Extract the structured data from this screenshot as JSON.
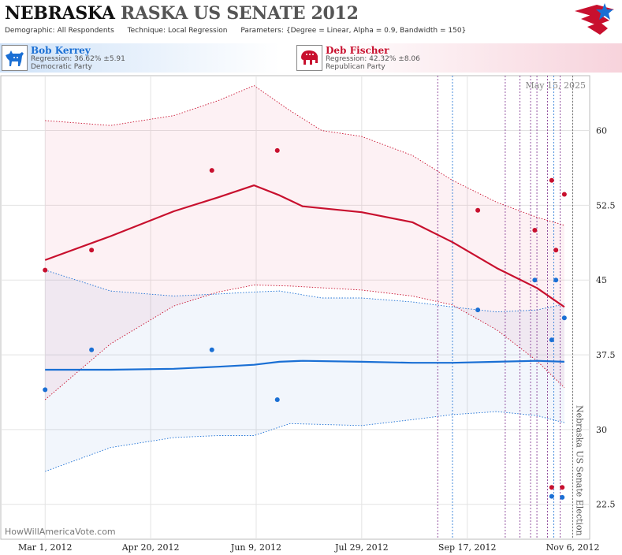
{
  "header": {
    "title_state": "NEBRASKA",
    "title_race": "RASKA US SENATE 2012",
    "params": [
      {
        "k": "Demographic:",
        "v": "All Respondents"
      },
      {
        "k": "Technique:",
        "v": "Local Regression"
      },
      {
        "k": "Parameters:",
        "v": "{Degree = Linear, Alpha = 0.9, Bandwidth = 150}"
      }
    ]
  },
  "candidates": {
    "dem": {
      "name": "Bob Kerrey",
      "regression": "Regression: 36.62% ±5.91",
      "party": "Democratic Party",
      "color": "#1a6fd4",
      "icon": "donkey-icon"
    },
    "rep": {
      "name": "Deb Fischer",
      "regression": "Regression: 42.32% ±8.06",
      "party": "Republican Party",
      "color": "#c8102e",
      "icon": "elephant-icon"
    }
  },
  "chart_data": {
    "type": "scatter",
    "date_label": "May 15, 2025",
    "watermark": "HowWillAmericaVote.com",
    "election_label": "Nebraska US Senate Election",
    "x_ticks": [
      "2012-03-01",
      "2012-04-20",
      "2012-06-09",
      "2012-07-29",
      "2012-09-17",
      "2012-11-06"
    ],
    "x_tick_labels": [
      "Mar 1, 2012",
      "Apr 20, 2012",
      "Jun 9, 2012",
      "Jul 29, 2012",
      "Sep 17, 2012",
      "Nov 6, 2012"
    ],
    "xlim": [
      "2012-02-09",
      "2012-11-14"
    ],
    "y_ticks": [
      22.5,
      30,
      37.5,
      45,
      52.5,
      60
    ],
    "y_tick_labels": [
      "22.5",
      "30",
      "37.5",
      "45",
      "52.5",
      "60"
    ],
    "ylim": [
      19,
      65.5
    ],
    "election_date": "2012-11-06",
    "event_lines_blue": [
      "2012-09-10",
      "2012-10-28"
    ],
    "event_lines_purple": [
      "2012-09-03",
      "2012-10-05",
      "2012-10-12",
      "2012-10-17",
      "2012-10-20",
      "2012-10-25",
      "2012-10-31"
    ],
    "series": [
      {
        "name": "Deb Fischer",
        "color": "#c8102e",
        "points": [
          [
            "2012-03-01",
            46
          ],
          [
            "2012-03-23",
            48
          ],
          [
            "2012-05-19",
            56
          ],
          [
            "2012-06-19",
            58
          ],
          [
            "2012-09-22",
            52
          ],
          [
            "2012-10-19",
            50
          ],
          [
            "2012-10-27",
            55
          ],
          [
            "2012-10-29",
            48
          ],
          [
            "2012-11-02",
            53.6
          ],
          [
            "2012-10-27",
            24.2
          ],
          [
            "2012-11-01",
            24.2
          ]
        ],
        "fit": [
          [
            "2012-03-01",
            47.0
          ],
          [
            "2012-04-01",
            49.4
          ],
          [
            "2012-05-01",
            51.9
          ],
          [
            "2012-05-22",
            53.3
          ],
          [
            "2012-06-08",
            54.5
          ],
          [
            "2012-06-20",
            53.5
          ],
          [
            "2012-07-01",
            52.4
          ],
          [
            "2012-07-29",
            51.8
          ],
          [
            "2012-08-22",
            50.8
          ],
          [
            "2012-09-10",
            48.8
          ],
          [
            "2012-10-01",
            46.2
          ],
          [
            "2012-10-20",
            44.2
          ],
          [
            "2012-11-02",
            42.3
          ]
        ],
        "upper": [
          [
            "2012-03-01",
            61.0
          ],
          [
            "2012-04-01",
            60.5
          ],
          [
            "2012-05-01",
            61.5
          ],
          [
            "2012-05-22",
            63.0
          ],
          [
            "2012-06-08",
            64.5
          ],
          [
            "2012-06-25",
            62.0
          ],
          [
            "2012-07-10",
            60.0
          ],
          [
            "2012-07-29",
            59.4
          ],
          [
            "2012-08-22",
            57.5
          ],
          [
            "2012-09-10",
            55.0
          ],
          [
            "2012-10-01",
            52.8
          ],
          [
            "2012-10-20",
            51.3
          ],
          [
            "2012-11-02",
            50.5
          ]
        ],
        "lower": [
          [
            "2012-03-01",
            33.0
          ],
          [
            "2012-04-01",
            38.6
          ],
          [
            "2012-05-01",
            42.4
          ],
          [
            "2012-05-22",
            43.8
          ],
          [
            "2012-06-08",
            44.5
          ],
          [
            "2012-06-25",
            44.4
          ],
          [
            "2012-07-29",
            44.0
          ],
          [
            "2012-08-22",
            43.4
          ],
          [
            "2012-09-10",
            42.5
          ],
          [
            "2012-10-01",
            40.0
          ],
          [
            "2012-10-20",
            36.9
          ],
          [
            "2012-11-02",
            34.2
          ]
        ]
      },
      {
        "name": "Bob Kerrey",
        "color": "#1a6fd4",
        "points": [
          [
            "2012-03-01",
            34
          ],
          [
            "2012-03-23",
            38
          ],
          [
            "2012-05-19",
            38
          ],
          [
            "2012-06-19",
            33
          ],
          [
            "2012-09-22",
            42
          ],
          [
            "2012-10-19",
            45
          ],
          [
            "2012-10-27",
            39
          ],
          [
            "2012-10-29",
            45
          ],
          [
            "2012-11-02",
            41.2
          ],
          [
            "2012-10-27",
            23.3
          ],
          [
            "2012-11-01",
            23.2
          ]
        ],
        "fit": [
          [
            "2012-03-01",
            36.0
          ],
          [
            "2012-04-01",
            36.0
          ],
          [
            "2012-05-01",
            36.1
          ],
          [
            "2012-05-22",
            36.3
          ],
          [
            "2012-06-08",
            36.5
          ],
          [
            "2012-06-20",
            36.8
          ],
          [
            "2012-07-01",
            36.9
          ],
          [
            "2012-07-29",
            36.8
          ],
          [
            "2012-08-22",
            36.7
          ],
          [
            "2012-09-10",
            36.7
          ],
          [
            "2012-10-01",
            36.8
          ],
          [
            "2012-10-20",
            36.9
          ],
          [
            "2012-11-02",
            36.8
          ]
        ],
        "upper": [
          [
            "2012-03-01",
            46.0
          ],
          [
            "2012-04-01",
            43.9
          ],
          [
            "2012-05-01",
            43.4
          ],
          [
            "2012-05-22",
            43.6
          ],
          [
            "2012-06-08",
            43.8
          ],
          [
            "2012-06-20",
            43.9
          ],
          [
            "2012-07-10",
            43.2
          ],
          [
            "2012-07-29",
            43.2
          ],
          [
            "2012-08-22",
            42.8
          ],
          [
            "2012-09-10",
            42.3
          ],
          [
            "2012-10-01",
            41.8
          ],
          [
            "2012-10-20",
            42.0
          ],
          [
            "2012-11-02",
            42.6
          ]
        ],
        "lower": [
          [
            "2012-03-01",
            25.8
          ],
          [
            "2012-04-01",
            28.2
          ],
          [
            "2012-05-01",
            29.2
          ],
          [
            "2012-05-22",
            29.4
          ],
          [
            "2012-06-08",
            29.4
          ],
          [
            "2012-06-25",
            30.6
          ],
          [
            "2012-07-29",
            30.4
          ],
          [
            "2012-08-22",
            31.0
          ],
          [
            "2012-09-10",
            31.5
          ],
          [
            "2012-10-01",
            31.8
          ],
          [
            "2012-10-20",
            31.4
          ],
          [
            "2012-11-02",
            30.7
          ]
        ]
      }
    ]
  }
}
